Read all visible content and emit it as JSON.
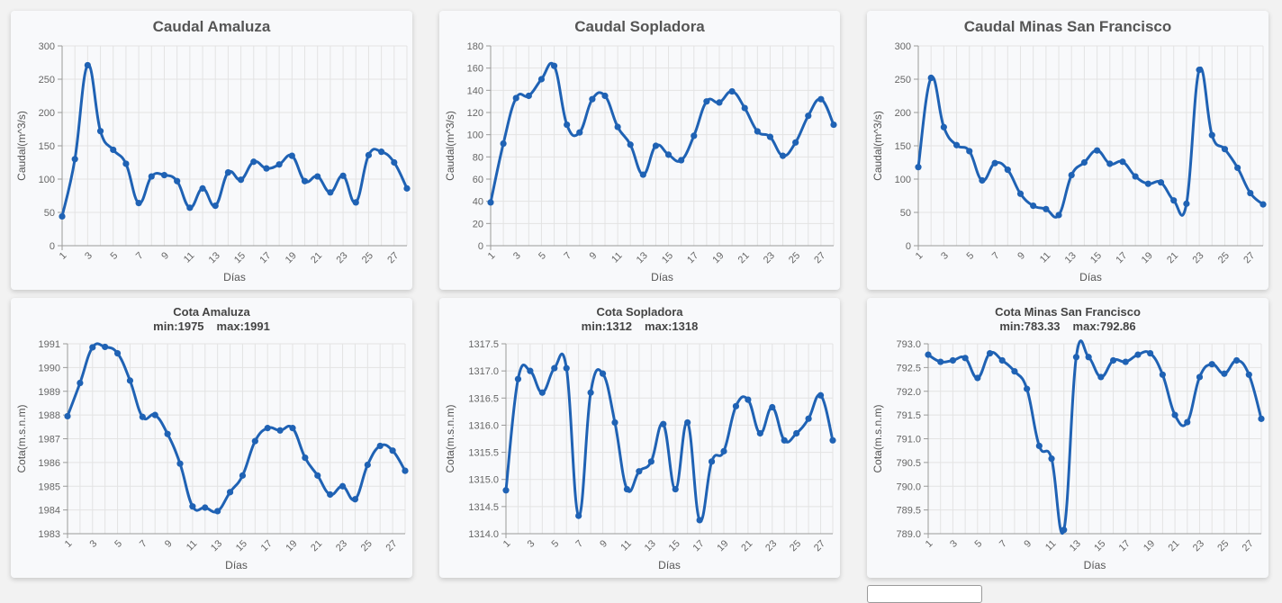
{
  "colors": {
    "series": "#1f62b4",
    "card_bg": "#f8f9fb",
    "grid": "#e3e3e3"
  },
  "chart_data": [
    {
      "type": "line",
      "title": "Caudal Amaluza",
      "xlabel": "Días",
      "ylabel": "Caudal(m^3/s)",
      "xlim": [
        1,
        28
      ],
      "ylim": [
        0,
        300
      ],
      "yticks": [
        0,
        50,
        100,
        150,
        200,
        250,
        300
      ],
      "ytick_labels": [
        "0",
        "50",
        "100",
        "150",
        "200",
        "250",
        "300"
      ],
      "xticks": [
        1,
        3,
        5,
        7,
        9,
        11,
        13,
        15,
        17,
        19,
        21,
        23,
        25,
        27
      ],
      "x": [
        1,
        2,
        3,
        4,
        5,
        6,
        7,
        8,
        9,
        10,
        11,
        12,
        13,
        14,
        15,
        16,
        17,
        18,
        19,
        20,
        21,
        22,
        23,
        24,
        25,
        26,
        27,
        28
      ],
      "series": [
        {
          "values": [
            44,
            130,
            271,
            172,
            144,
            123,
            64,
            104,
            106,
            97,
            57,
            86,
            60,
            110,
            99,
            126,
            116,
            122,
            135,
            97,
            104,
            80,
            105,
            65,
            136,
            141,
            125,
            86
          ]
        }
      ]
    },
    {
      "type": "line",
      "title": "Caudal Sopladora",
      "xlabel": "Días",
      "ylabel": "Caudal(m^3/s)",
      "xlim": [
        1,
        28
      ],
      "ylim": [
        0,
        180
      ],
      "yticks": [
        0,
        20,
        40,
        60,
        80,
        100,
        120,
        140,
        160,
        180
      ],
      "ytick_labels": [
        "0",
        "20",
        "40",
        "60",
        "80",
        "100",
        "120",
        "140",
        "160",
        "180"
      ],
      "xticks": [
        1,
        3,
        5,
        7,
        9,
        11,
        13,
        15,
        17,
        19,
        21,
        23,
        25,
        27
      ],
      "x": [
        1,
        2,
        3,
        4,
        5,
        6,
        7,
        8,
        9,
        10,
        11,
        12,
        13,
        14,
        15,
        16,
        17,
        18,
        19,
        20,
        21,
        22,
        23,
        24,
        25,
        26,
        27,
        28
      ],
      "series": [
        {
          "values": [
            39,
            92,
            133,
            135,
            150,
            162,
            109,
            102,
            132,
            135,
            107,
            91,
            64,
            90,
            82,
            77,
            99,
            130,
            129,
            139,
            124,
            103,
            98,
            81,
            93,
            117,
            132,
            109
          ]
        }
      ]
    },
    {
      "type": "line",
      "title": "Caudal Minas San Francisco",
      "xlabel": "Días",
      "ylabel": "Caudal(m^3/s)",
      "xlim": [
        1,
        28
      ],
      "ylim": [
        0,
        300
      ],
      "yticks": [
        0,
        50,
        100,
        150,
        200,
        250,
        300
      ],
      "ytick_labels": [
        "0",
        "50",
        "100",
        "150",
        "200",
        "250",
        "300"
      ],
      "xticks": [
        1,
        3,
        5,
        7,
        9,
        11,
        13,
        15,
        17,
        19,
        21,
        23,
        25,
        27
      ],
      "x": [
        1,
        2,
        3,
        4,
        5,
        6,
        7,
        8,
        9,
        10,
        11,
        12,
        13,
        14,
        15,
        16,
        17,
        18,
        19,
        20,
        21,
        22,
        23,
        24,
        25,
        26,
        27,
        28
      ],
      "series": [
        {
          "values": [
            118,
            252,
            178,
            151,
            142,
            98,
            124,
            114,
            78,
            60,
            55,
            46,
            106,
            125,
            143,
            123,
            126,
            104,
            93,
            95,
            68,
            63,
            264,
            166,
            145,
            117,
            79,
            62
          ]
        }
      ]
    },
    {
      "type": "line",
      "title": "Cota Amaluza",
      "subtitle_min": "min:1975",
      "subtitle_max": "max:1991",
      "xlabel": "Días",
      "ylabel": "Cota(m.s.n.m)",
      "xlim": [
        1,
        28
      ],
      "ylim": [
        1983,
        1991
      ],
      "yticks": [
        1983,
        1984,
        1985,
        1986,
        1987,
        1988,
        1989,
        1990,
        1991
      ],
      "ytick_labels": [
        "1983",
        "1984",
        "1985",
        "1986",
        "1987",
        "1988",
        "1989",
        "1990",
        "1991"
      ],
      "xticks": [
        1,
        3,
        5,
        7,
        9,
        11,
        13,
        15,
        17,
        19,
        21,
        23,
        25,
        27
      ],
      "x": [
        1,
        2,
        3,
        4,
        5,
        6,
        7,
        8,
        9,
        10,
        11,
        12,
        13,
        14,
        15,
        16,
        17,
        18,
        19,
        20,
        21,
        22,
        23,
        24,
        25,
        26,
        27,
        28
      ],
      "series": [
        {
          "values": [
            1987.95,
            1989.35,
            1990.85,
            1990.87,
            1990.6,
            1989.45,
            1987.92,
            1988.0,
            1987.2,
            1985.95,
            1984.15,
            1984.1,
            1983.95,
            1984.75,
            1985.45,
            1986.9,
            1987.45,
            1987.35,
            1987.45,
            1986.2,
            1985.45,
            1984.65,
            1985.0,
            1984.45,
            1985.9,
            1986.7,
            1986.5,
            1985.65
          ]
        }
      ]
    },
    {
      "type": "line",
      "title": "Cota Sopladora",
      "subtitle_min": "min:1312",
      "subtitle_max": "max:1318",
      "xlabel": "Días",
      "ylabel": "Cota(m.s.n.m)",
      "xlim": [
        1,
        28
      ],
      "ylim": [
        1314.0,
        1317.5
      ],
      "yticks": [
        1314.0,
        1314.5,
        1315.0,
        1315.5,
        1316.0,
        1316.5,
        1317.0,
        1317.5
      ],
      "ytick_labels": [
        "1314.0",
        "1314.5",
        "1315.0",
        "1315.5",
        "1316.0",
        "1316.5",
        "1317.0",
        "1317.5"
      ],
      "xticks": [
        1,
        3,
        5,
        7,
        9,
        11,
        13,
        15,
        17,
        19,
        21,
        23,
        25,
        27
      ],
      "x": [
        1,
        2,
        3,
        4,
        5,
        6,
        7,
        8,
        9,
        10,
        11,
        12,
        13,
        14,
        15,
        16,
        17,
        18,
        19,
        20,
        21,
        22,
        23,
        24,
        25,
        26,
        27,
        28
      ],
      "series": [
        {
          "values": [
            1314.8,
            1316.85,
            1317.0,
            1316.6,
            1317.05,
            1317.05,
            1314.33,
            1316.6,
            1316.95,
            1316.05,
            1314.82,
            1315.15,
            1315.33,
            1316.02,
            1314.82,
            1316.05,
            1314.25,
            1315.33,
            1315.52,
            1316.35,
            1316.47,
            1315.85,
            1316.33,
            1315.72,
            1315.85,
            1316.12,
            1316.55,
            1315.72
          ]
        }
      ]
    },
    {
      "type": "line",
      "title": "Cota Minas San Francisco",
      "subtitle_min": "min:783.33",
      "subtitle_max": "max:792.86",
      "xlabel": "Días",
      "ylabel": "Cota(m.s.n.m)",
      "xlim": [
        1,
        28
      ],
      "ylim": [
        789.0,
        793.0
      ],
      "yticks": [
        789.0,
        789.5,
        790.0,
        790.5,
        791.0,
        791.5,
        792.0,
        792.5,
        793.0
      ],
      "ytick_labels": [
        "789.0",
        "789.5",
        "790.0",
        "790.5",
        "791.0",
        "791.5",
        "792.0",
        "792.5",
        "793.0"
      ],
      "xticks": [
        1,
        3,
        5,
        7,
        9,
        11,
        13,
        15,
        17,
        19,
        21,
        23,
        25,
        27
      ],
      "x": [
        1,
        2,
        3,
        4,
        5,
        6,
        7,
        8,
        9,
        10,
        11,
        12,
        13,
        14,
        15,
        16,
        17,
        18,
        19,
        20,
        21,
        22,
        23,
        24,
        25,
        26,
        27,
        28
      ],
      "series": [
        {
          "values": [
            792.77,
            792.62,
            792.65,
            792.7,
            792.28,
            792.8,
            792.65,
            792.42,
            792.05,
            790.85,
            790.58,
            789.08,
            792.72,
            792.72,
            792.3,
            792.65,
            792.62,
            792.77,
            792.8,
            792.35,
            791.5,
            791.35,
            792.3,
            792.57,
            792.37,
            792.65,
            792.35,
            791.42
          ]
        }
      ]
    }
  ]
}
